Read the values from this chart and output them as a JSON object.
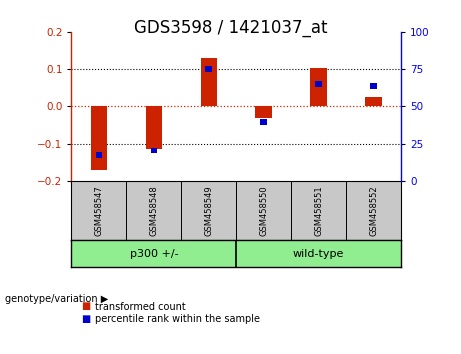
{
  "title": "GDS3598 / 1421037_at",
  "samples": [
    "GSM458547",
    "GSM458548",
    "GSM458549",
    "GSM458550",
    "GSM458551",
    "GSM458552"
  ],
  "red_values": [
    -0.17,
    -0.115,
    0.13,
    -0.03,
    0.102,
    0.025
  ],
  "blue_values": [
    -0.13,
    -0.118,
    0.1,
    -0.042,
    0.06,
    0.055
  ],
  "red_color": "#cc2200",
  "blue_color": "#0000cc",
  "ylim_left": [
    -0.2,
    0.2
  ],
  "ylim_right": [
    0,
    100
  ],
  "yticks_left": [
    -0.2,
    -0.1,
    0.0,
    0.1,
    0.2
  ],
  "yticks_right": [
    0,
    25,
    50,
    75,
    100
  ],
  "group_label": "genotype/variation",
  "group1_label": "p300 +/-",
  "group2_label": "wild-type",
  "group1_indices": [
    0,
    1,
    2
  ],
  "group2_indices": [
    3,
    4,
    5
  ],
  "group_color": "#90ee90",
  "sample_bg_color": "#c8c8c8",
  "legend_red": "transformed count",
  "legend_blue": "percentile rank within the sample",
  "red_bar_width": 0.3,
  "blue_bar_width": 0.12,
  "plot_bg": "#ffffff",
  "zero_line_color": "#cc2200",
  "title_fontsize": 12,
  "tick_fontsize": 7.5,
  "label_fontsize": 7
}
